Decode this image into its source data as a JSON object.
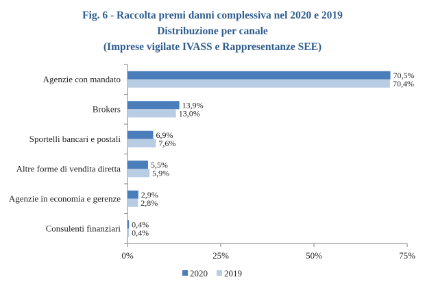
{
  "chart_data": {
    "type": "bar",
    "orientation": "horizontal",
    "title": [
      "Fig. 6 - Raccolta premi danni complessiva nel 2020 e 2019",
      "Distribuzione per canale",
      "(Imprese vigilate IVASS e Rappresentanze SEE)"
    ],
    "categories": [
      "Agenzie con mandato",
      "Brokers",
      "Sportelli bancari e postali",
      "Altre forme di vendita diretta",
      "Agenzie in economia e gerenze",
      "Consulenti finanziari"
    ],
    "series": [
      {
        "name": "2020",
        "color": "#4a7ebb",
        "values": [
          70.5,
          13.9,
          6.9,
          5.5,
          2.9,
          0.4
        ],
        "labels": [
          "70,5%",
          "13,9%",
          "6,9%",
          "5,5%",
          "2,9%",
          "0,4%"
        ]
      },
      {
        "name": "2019",
        "color": "#b8cce4",
        "values": [
          70.4,
          13.0,
          7.6,
          5.9,
          2.8,
          0.4
        ],
        "labels": [
          "70,4%",
          "13,0%",
          "7,6%",
          "5,9%",
          "2,8%",
          "0,4%"
        ]
      }
    ],
    "xlim": [
      0,
      75
    ],
    "xticks": [
      0,
      25,
      50,
      75
    ],
    "xtick_labels": [
      "0%",
      "25%",
      "50%",
      "75%"
    ],
    "xlabel": "",
    "ylabel": "",
    "grid": false,
    "legend_position": "bottom"
  }
}
